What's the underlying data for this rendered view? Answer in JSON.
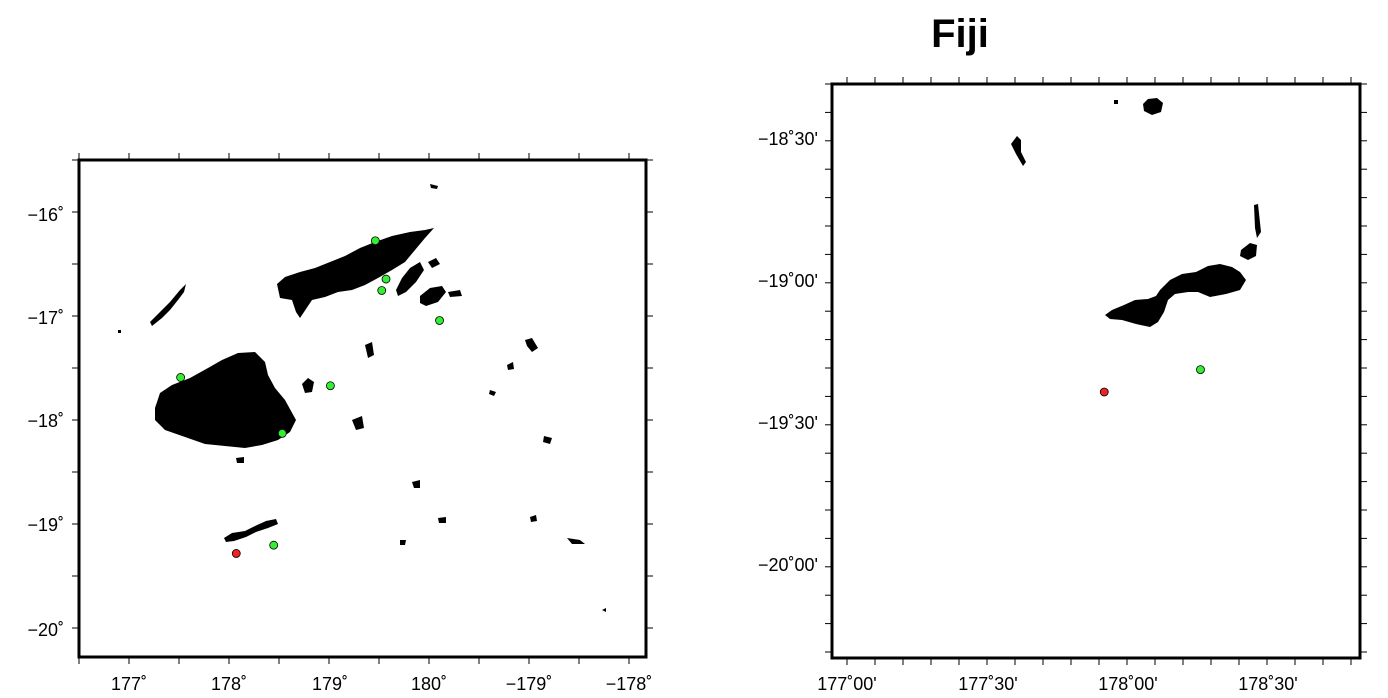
{
  "title": "Fiji",
  "colors": {
    "land": "#000000",
    "frame": "#000000",
    "station": "#33ee33",
    "event": "#ee2222",
    "background": "#ffffff"
  },
  "map_left": {
    "lon_labels": [
      "177˚",
      "178˚",
      "179˚",
      "180˚",
      "−179˚",
      "−178˚"
    ],
    "lat_labels": [
      "−16˚",
      "−17˚",
      "−18˚",
      "−19˚",
      "−20˚"
    ],
    "lon_range": [
      176.5,
      181.8
    ],
    "lat_range": [
      -20.3,
      -15.5
    ],
    "stations": [
      {
        "lon": 179.27,
        "lat": -16.28
      },
      {
        "lon": 179.37,
        "lat": -16.65
      },
      {
        "lon": 179.33,
        "lat": -16.76
      },
      {
        "lon": 179.87,
        "lat": -17.05
      },
      {
        "lon": 177.45,
        "lat": -17.6
      },
      {
        "lon": 178.85,
        "lat": -17.68
      },
      {
        "lon": 178.4,
        "lat": -18.14
      },
      {
        "lon": 178.32,
        "lat": -19.22
      }
    ],
    "events": [
      {
        "lon": 177.97,
        "lat": -19.3
      }
    ]
  },
  "map_right": {
    "lon_labels": [
      "177˚00'",
      "177˚30'",
      "178˚00'",
      "178˚30'"
    ],
    "lat_labels": [
      "−18˚30'",
      "−19˚00'",
      "−19˚30'",
      "−20˚00'"
    ],
    "lon_range": [
      176.98,
      178.9
    ],
    "lat_range": [
      -20.25,
      -18.2
    ],
    "stations": [
      {
        "lon": 178.32,
        "lat": -19.22
      }
    ],
    "events": [
      {
        "lon": 177.97,
        "lat": -19.3
      }
    ]
  }
}
